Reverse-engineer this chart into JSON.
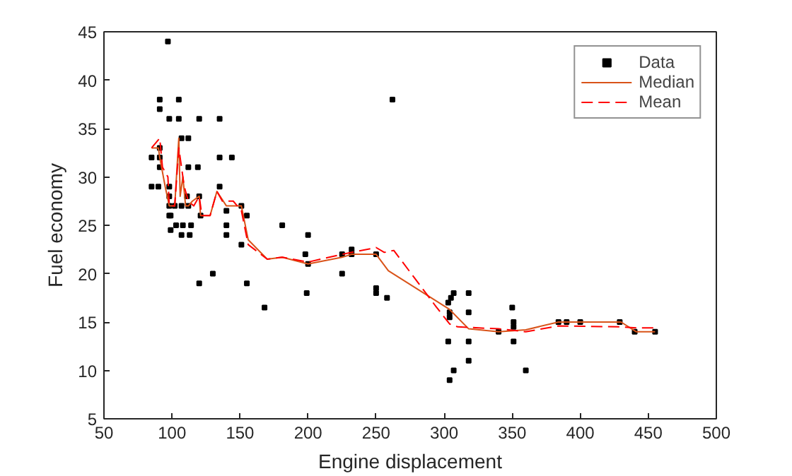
{
  "chart_data": {
    "type": "line",
    "xlabel": "Engine displacement",
    "ylabel": "Fuel economy",
    "xlim": [
      50,
      500
    ],
    "ylim": [
      5,
      45
    ],
    "xticks": [
      50,
      100,
      150,
      200,
      250,
      300,
      350,
      400,
      450,
      500
    ],
    "yticks": [
      5,
      10,
      15,
      20,
      25,
      30,
      35,
      40,
      45
    ],
    "grid": false,
    "legend": "top right",
    "series": [
      {
        "name": "Data",
        "type": "scatter",
        "marker": "square",
        "color": "#000000",
        "x": [
          97,
          91,
          105,
          91,
          98,
          105,
          120,
          135,
          107,
          112,
          91,
          85,
          91,
          135,
          144,
          91,
          112,
          119,
          98,
          85,
          90,
          135,
          98,
          120,
          111,
          98,
          102,
          107,
          112,
          151,
          98,
          99,
          121,
          155,
          103,
          108,
          114,
          140,
          99,
          107,
          113,
          140,
          151,
          130,
          120,
          155,
          140,
          181,
          200,
          198,
          225,
          232,
          232,
          250,
          200,
          225,
          199,
          250,
          250,
          258,
          168,
          262,
          303,
          305,
          307,
          318,
          304,
          318,
          304,
          303,
          318,
          351,
          318,
          307,
          360,
          304,
          350,
          351,
          351,
          340,
          384,
          390,
          400,
          429,
          440,
          455
        ],
        "values": [
          44,
          38,
          38,
          37,
          36,
          36,
          36,
          36,
          34,
          34,
          33,
          32,
          32,
          32,
          32,
          31,
          31,
          31,
          29,
          29,
          29,
          29,
          28,
          28,
          28,
          27,
          27,
          27,
          27,
          27,
          26,
          26,
          26,
          26,
          25,
          25,
          25,
          25,
          24.5,
          24,
          24,
          24,
          23,
          20,
          19,
          19,
          26.5,
          25,
          24,
          22,
          22,
          22.5,
          22,
          22,
          21,
          20,
          18,
          18.5,
          18,
          17.5,
          16.5,
          38,
          17,
          17.5,
          18,
          18,
          16,
          16,
          15.5,
          13,
          13,
          13,
          11,
          10,
          10,
          9,
          16.5,
          15,
          14.5,
          14,
          15,
          15,
          15,
          15,
          14,
          14
        ]
      },
      {
        "name": "Median",
        "marker": "none",
        "line_style": "solid",
        "color": "#d95319",
        "x": [
          85,
          90,
          91,
          95,
          98,
          102,
          105,
          106,
          108,
          110,
          112,
          115,
          120,
          121,
          128,
          133,
          140,
          151,
          156,
          170,
          181,
          200,
          225,
          232,
          250,
          259,
          304,
          318,
          340,
          360,
          384,
          430,
          441,
          455
        ],
        "values": [
          33,
          33,
          32,
          29,
          27,
          27,
          34,
          28,
          30,
          27,
          27,
          27.5,
          28,
          26,
          26,
          28.5,
          27,
          27,
          23.5,
          21.5,
          21.7,
          21,
          21.7,
          22,
          22,
          20.3,
          16.3,
          14.3,
          14,
          14.2,
          15,
          15,
          14,
          14
        ]
      },
      {
        "name": "Mean",
        "marker": "none",
        "line_style": "dashed",
        "color": "#ff0000",
        "x": [
          85,
          91,
          93,
          97,
          98,
          102,
          105,
          107,
          109,
          112,
          116,
          120,
          122,
          128,
          133,
          137,
          145,
          151,
          156,
          170,
          181,
          200,
          225,
          250,
          256,
          263,
          294,
          304,
          310,
          340,
          360,
          384,
          430,
          441,
          455
        ],
        "values": [
          33,
          34,
          31,
          30,
          27,
          27,
          33,
          31,
          29,
          27.5,
          27,
          28,
          26,
          26,
          28.5,
          27.5,
          27.5,
          26.5,
          23,
          21.5,
          21.7,
          21.2,
          22,
          22.7,
          22.2,
          22.4,
          16.6,
          14.8,
          14.5,
          14.3,
          14,
          14.6,
          14.5,
          14.4,
          14.4
        ]
      }
    ]
  }
}
